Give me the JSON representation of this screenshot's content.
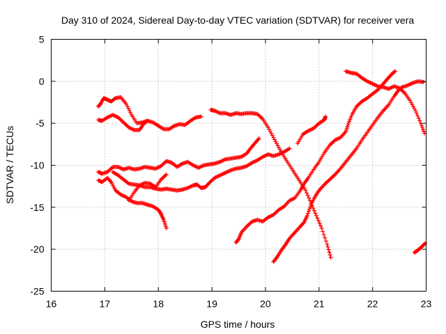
{
  "chart_data": {
    "type": "scatter",
    "title": "Day 310 of 2024, Sidereal Day-to-day VTEC variation (SDTVAR) for receiver vera",
    "xlabel": "GPS time / hours",
    "ylabel": "SDTVAR / TECUs",
    "xlim": [
      16,
      23
    ],
    "ylim": [
      -25,
      5
    ],
    "xticks": [
      "16",
      "17",
      "18",
      "19",
      "20",
      "21",
      "22",
      "23"
    ],
    "yticks": [
      "-25",
      "-20",
      "-15",
      "-10",
      "-5",
      "0",
      "5"
    ],
    "grid": true,
    "legend": "none",
    "marker": "plus",
    "color": "#ff0000",
    "series": [
      {
        "points": [
          [
            16.88,
            -3.0
          ],
          [
            16.92,
            -2.7
          ],
          [
            16.98,
            -2.0
          ],
          [
            17.05,
            -2.2
          ],
          [
            17.12,
            -2.4
          ],
          [
            17.2,
            -2.0
          ],
          [
            17.3,
            -1.9
          ],
          [
            17.4,
            -2.7
          ],
          [
            17.5,
            -4.0
          ],
          [
            17.6,
            -5.0
          ],
          [
            17.7,
            -4.9
          ],
          [
            17.8,
            -4.7
          ],
          [
            17.9,
            -4.9
          ],
          [
            18.0,
            -5.3
          ],
          [
            18.1,
            -5.7
          ],
          [
            18.2,
            -5.7
          ],
          [
            18.3,
            -5.3
          ],
          [
            18.4,
            -5.1
          ],
          [
            18.5,
            -5.2
          ],
          [
            18.6,
            -4.7
          ],
          [
            18.7,
            -4.3
          ],
          [
            18.8,
            -4.2
          ]
        ]
      },
      {
        "points": [
          [
            16.88,
            -4.6
          ],
          [
            16.95,
            -4.7
          ],
          [
            17.05,
            -4.3
          ],
          [
            17.15,
            -4.0
          ],
          [
            17.25,
            -4.3
          ],
          [
            17.35,
            -4.9
          ],
          [
            17.45,
            -5.5
          ],
          [
            17.55,
            -5.8
          ],
          [
            17.65,
            -5.8
          ],
          [
            17.72,
            -5.1
          ],
          [
            17.8,
            -4.7
          ]
        ]
      },
      {
        "points": [
          [
            16.88,
            -10.8
          ],
          [
            16.95,
            -11.0
          ],
          [
            17.05,
            -10.8
          ],
          [
            17.15,
            -10.2
          ],
          [
            17.25,
            -10.2
          ],
          [
            17.35,
            -10.5
          ],
          [
            17.45,
            -10.3
          ],
          [
            17.55,
            -10.5
          ],
          [
            17.65,
            -10.4
          ],
          [
            17.75,
            -10.2
          ],
          [
            17.85,
            -10.3
          ],
          [
            17.95,
            -10.4
          ],
          [
            18.05,
            -10.1
          ],
          [
            18.15,
            -9.5
          ],
          [
            18.25,
            -9.7
          ],
          [
            18.35,
            -10.2
          ],
          [
            18.45,
            -9.8
          ],
          [
            18.55,
            -9.6
          ],
          [
            18.65,
            -10.0
          ],
          [
            18.75,
            -10.3
          ],
          [
            18.85,
            -10.0
          ],
          [
            18.95,
            -9.9
          ],
          [
            19.05,
            -9.8
          ],
          [
            19.15,
            -9.6
          ],
          [
            19.25,
            -9.3
          ],
          [
            19.35,
            -9.2
          ],
          [
            19.45,
            -9.1
          ],
          [
            19.55,
            -9.0
          ],
          [
            19.65,
            -8.6
          ],
          [
            19.72,
            -8.0
          ],
          [
            19.8,
            -7.4
          ],
          [
            19.88,
            -6.8
          ]
        ]
      },
      {
        "points": [
          [
            16.88,
            -11.8
          ],
          [
            16.95,
            -12.0
          ],
          [
            17.05,
            -11.5
          ],
          [
            17.12,
            -12.0
          ],
          [
            17.2,
            -13.0
          ],
          [
            17.3,
            -13.5
          ],
          [
            17.4,
            -13.8
          ],
          [
            17.5,
            -14.3
          ],
          [
            17.6,
            -14.5
          ],
          [
            17.7,
            -14.5
          ],
          [
            17.8,
            -14.7
          ],
          [
            17.9,
            -14.9
          ],
          [
            18.0,
            -15.3
          ],
          [
            18.05,
            -15.8
          ],
          [
            18.1,
            -16.5
          ],
          [
            18.15,
            -17.5
          ]
        ]
      },
      {
        "points": [
          [
            17.45,
            -14.2
          ],
          [
            17.55,
            -13.2
          ],
          [
            17.65,
            -12.4
          ],
          [
            17.75,
            -12.1
          ],
          [
            17.85,
            -12.2
          ],
          [
            17.95,
            -12.6
          ],
          [
            18.05,
            -11.7
          ],
          [
            18.15,
            -11.1
          ]
        ]
      },
      {
        "points": [
          [
            17.15,
            -10.8
          ],
          [
            17.25,
            -11.2
          ],
          [
            17.35,
            -11.7
          ],
          [
            17.45,
            -12.2
          ],
          [
            17.55,
            -12.3
          ],
          [
            17.65,
            -12.4
          ],
          [
            17.75,
            -12.6
          ],
          [
            17.85,
            -12.6
          ],
          [
            17.95,
            -12.8
          ],
          [
            18.05,
            -12.9
          ],
          [
            18.15,
            -12.8
          ],
          [
            18.25,
            -12.9
          ],
          [
            18.35,
            -13.0
          ],
          [
            18.45,
            -12.9
          ],
          [
            18.55,
            -12.7
          ],
          [
            18.65,
            -12.4
          ],
          [
            18.72,
            -12.3
          ],
          [
            18.8,
            -12.7
          ],
          [
            18.88,
            -12.6
          ],
          [
            18.95,
            -12.1
          ],
          [
            19.05,
            -11.5
          ],
          [
            19.15,
            -11.2
          ],
          [
            19.25,
            -10.9
          ],
          [
            19.35,
            -10.6
          ],
          [
            19.45,
            -10.4
          ],
          [
            19.55,
            -10.3
          ],
          [
            19.65,
            -10.1
          ],
          [
            19.75,
            -9.7
          ],
          [
            19.85,
            -9.4
          ],
          [
            19.95,
            -9.0
          ],
          [
            20.05,
            -8.7
          ],
          [
            20.15,
            -8.9
          ],
          [
            20.25,
            -8.7
          ],
          [
            20.35,
            -8.4
          ],
          [
            20.45,
            -8.0
          ]
        ]
      },
      {
        "points": [
          [
            18.98,
            -3.4
          ],
          [
            19.05,
            -3.5
          ],
          [
            19.15,
            -3.8
          ],
          [
            19.25,
            -3.8
          ],
          [
            19.35,
            -4.0
          ],
          [
            19.45,
            -3.8
          ],
          [
            19.55,
            -3.9
          ],
          [
            19.65,
            -3.8
          ],
          [
            19.75,
            -3.8
          ],
          [
            19.85,
            -3.9
          ],
          [
            19.95,
            -4.5
          ],
          [
            20.05,
            -5.5
          ],
          [
            20.15,
            -6.7
          ],
          [
            20.25,
            -7.9
          ],
          [
            20.35,
            -9.0
          ],
          [
            20.45,
            -10.0
          ],
          [
            20.55,
            -11.0
          ],
          [
            20.65,
            -12.0
          ],
          [
            20.75,
            -13.0
          ],
          [
            20.85,
            -14.5
          ],
          [
            20.95,
            -16.0
          ],
          [
            21.05,
            -17.5
          ],
          [
            21.15,
            -19.4
          ],
          [
            21.22,
            -21.0
          ]
        ]
      },
      {
        "points": [
          [
            19.45,
            -19.2
          ],
          [
            19.5,
            -18.8
          ],
          [
            19.55,
            -18.0
          ],
          [
            19.65,
            -17.3
          ],
          [
            19.75,
            -16.7
          ],
          [
            19.85,
            -16.5
          ],
          [
            19.95,
            -16.7
          ],
          [
            20.05,
            -16.2
          ],
          [
            20.15,
            -15.9
          ],
          [
            20.25,
            -15.3
          ],
          [
            20.35,
            -14.9
          ],
          [
            20.45,
            -14.2
          ],
          [
            20.55,
            -13.9
          ],
          [
            20.65,
            -13.0
          ],
          [
            20.72,
            -12.2
          ],
          [
            20.8,
            -11.5
          ],
          [
            20.9,
            -10.5
          ],
          [
            21.0,
            -9.6
          ],
          [
            21.1,
            -8.5
          ],
          [
            21.2,
            -7.6
          ],
          [
            21.3,
            -7.0
          ],
          [
            21.4,
            -6.7
          ],
          [
            21.5,
            -6.0
          ],
          [
            21.55,
            -5.0
          ],
          [
            21.62,
            -3.9
          ],
          [
            21.7,
            -3.0
          ],
          [
            21.8,
            -2.4
          ],
          [
            21.9,
            -2.0
          ],
          [
            22.0,
            -1.5
          ],
          [
            22.1,
            -1.0
          ],
          [
            22.2,
            -0.3
          ],
          [
            22.28,
            0.3
          ],
          [
            22.35,
            0.8
          ],
          [
            22.42,
            1.2
          ]
        ]
      },
      {
        "points": [
          [
            20.15,
            -21.5
          ],
          [
            20.22,
            -20.9
          ],
          [
            20.3,
            -20.1
          ],
          [
            20.38,
            -19.4
          ],
          [
            20.45,
            -18.7
          ],
          [
            20.55,
            -18.0
          ],
          [
            20.65,
            -17.3
          ],
          [
            20.72,
            -16.8
          ],
          [
            20.78,
            -16.0
          ],
          [
            20.85,
            -14.7
          ],
          [
            20.92,
            -13.8
          ],
          [
            21.0,
            -13.0
          ],
          [
            21.1,
            -12.3
          ],
          [
            21.2,
            -11.7
          ],
          [
            21.3,
            -11.1
          ],
          [
            21.4,
            -10.4
          ],
          [
            21.5,
            -9.6
          ],
          [
            21.6,
            -8.8
          ],
          [
            21.7,
            -8.0
          ],
          [
            21.8,
            -7.0
          ],
          [
            21.9,
            -6.1
          ],
          [
            22.0,
            -5.2
          ],
          [
            22.1,
            -4.3
          ],
          [
            22.2,
            -3.5
          ],
          [
            22.3,
            -2.8
          ],
          [
            22.4,
            -1.8
          ],
          [
            22.48,
            -1.1
          ],
          [
            22.55,
            -0.7
          ],
          [
            22.65,
            -0.5
          ],
          [
            22.75,
            -0.2
          ],
          [
            22.85,
            0.0
          ],
          [
            22.95,
            -0.1
          ]
        ]
      },
      {
        "points": [
          [
            20.6,
            -7.4
          ],
          [
            20.7,
            -6.3
          ],
          [
            20.8,
            -5.9
          ],
          [
            20.9,
            -5.6
          ],
          [
            21.0,
            -5.0
          ],
          [
            21.1,
            -4.6
          ],
          [
            21.12,
            -4.2
          ]
        ]
      },
      {
        "points": [
          [
            21.5,
            1.2
          ],
          [
            21.6,
            1.0
          ],
          [
            21.7,
            0.9
          ],
          [
            21.8,
            0.4
          ],
          [
            21.9,
            0.0
          ],
          [
            22.0,
            -0.3
          ],
          [
            22.1,
            -0.6
          ],
          [
            22.2,
            -0.7
          ],
          [
            22.3,
            -0.9
          ],
          [
            22.4,
            -0.6
          ],
          [
            22.5,
            -0.8
          ],
          [
            22.6,
            -1.4
          ],
          [
            22.7,
            -2.3
          ],
          [
            22.8,
            -3.5
          ],
          [
            22.9,
            -5.0
          ],
          [
            22.97,
            -6.2
          ]
        ]
      },
      {
        "points": [
          [
            22.78,
            -20.4
          ],
          [
            22.85,
            -20.1
          ],
          [
            22.92,
            -19.7
          ],
          [
            22.98,
            -19.3
          ]
        ]
      }
    ]
  }
}
